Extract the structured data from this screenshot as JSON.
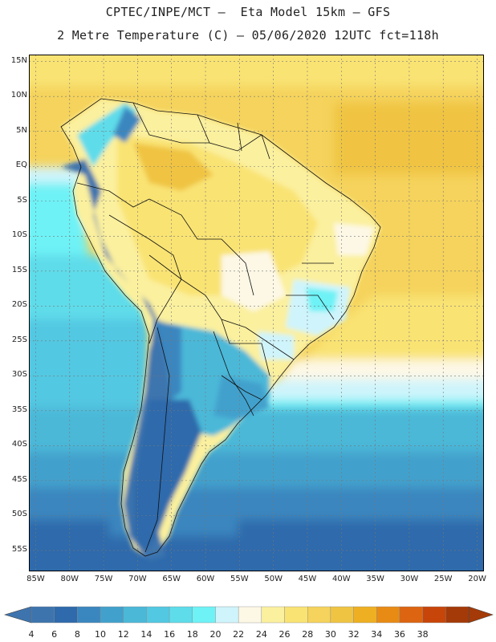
{
  "header": {
    "title_line1": "CPTEC/INPE/MCT –  Eta Model 15km – GFS",
    "title_line2": "2 Metre Temperature (C) – 05/06/2020 12UTC fct=118h"
  },
  "map": {
    "extent": {
      "lon_min": -86,
      "lon_max": -19,
      "lat_min": -58,
      "lat_max": 16
    },
    "lat_ticks": [
      {
        "value": 15,
        "label": "15N"
      },
      {
        "value": 10,
        "label": "10N"
      },
      {
        "value": 5,
        "label": "5N"
      },
      {
        "value": 0,
        "label": "EQ"
      },
      {
        "value": -5,
        "label": "5S"
      },
      {
        "value": -10,
        "label": "10S"
      },
      {
        "value": -15,
        "label": "15S"
      },
      {
        "value": -20,
        "label": "20S"
      },
      {
        "value": -25,
        "label": "25S"
      },
      {
        "value": -30,
        "label": "30S"
      },
      {
        "value": -35,
        "label": "35S"
      },
      {
        "value": -40,
        "label": "40S"
      },
      {
        "value": -45,
        "label": "45S"
      },
      {
        "value": -50,
        "label": "50S"
      },
      {
        "value": -55,
        "label": "55S"
      }
    ],
    "lon_ticks": [
      {
        "value": -85,
        "label": "85W"
      },
      {
        "value": -80,
        "label": "80W"
      },
      {
        "value": -75,
        "label": "75W"
      },
      {
        "value": -70,
        "label": "70W"
      },
      {
        "value": -65,
        "label": "65W"
      },
      {
        "value": -60,
        "label": "60W"
      },
      {
        "value": -55,
        "label": "55W"
      },
      {
        "value": -50,
        "label": "50W"
      },
      {
        "value": -45,
        "label": "45W"
      },
      {
        "value": -40,
        "label": "40W"
      },
      {
        "value": -35,
        "label": "35W"
      },
      {
        "value": -30,
        "label": "30W"
      },
      {
        "value": -25,
        "label": "25W"
      },
      {
        "value": -20,
        "label": "20W"
      }
    ],
    "grid": true
  },
  "colorbar": {
    "levels": [
      "4",
      "6",
      "8",
      "10",
      "12",
      "14",
      "16",
      "18",
      "20",
      "22",
      "24",
      "26",
      "28",
      "30",
      "32",
      "34",
      "36",
      "38"
    ],
    "colors": [
      "#3e74ae",
      "#2e6aac",
      "#3a86bf",
      "#42a1cc",
      "#4bb8d8",
      "#52c8e2",
      "#5edcea",
      "#6ef2f6",
      "#cff4fb",
      "#fdf8e6",
      "#fbf09e",
      "#f9e373",
      "#f5d35c",
      "#f0c443",
      "#eeb022",
      "#e88b15",
      "#dd6410",
      "#c74509",
      "#a43a08"
    ],
    "under_color": "#3e74ae",
    "over_color": "#a43a08"
  }
}
